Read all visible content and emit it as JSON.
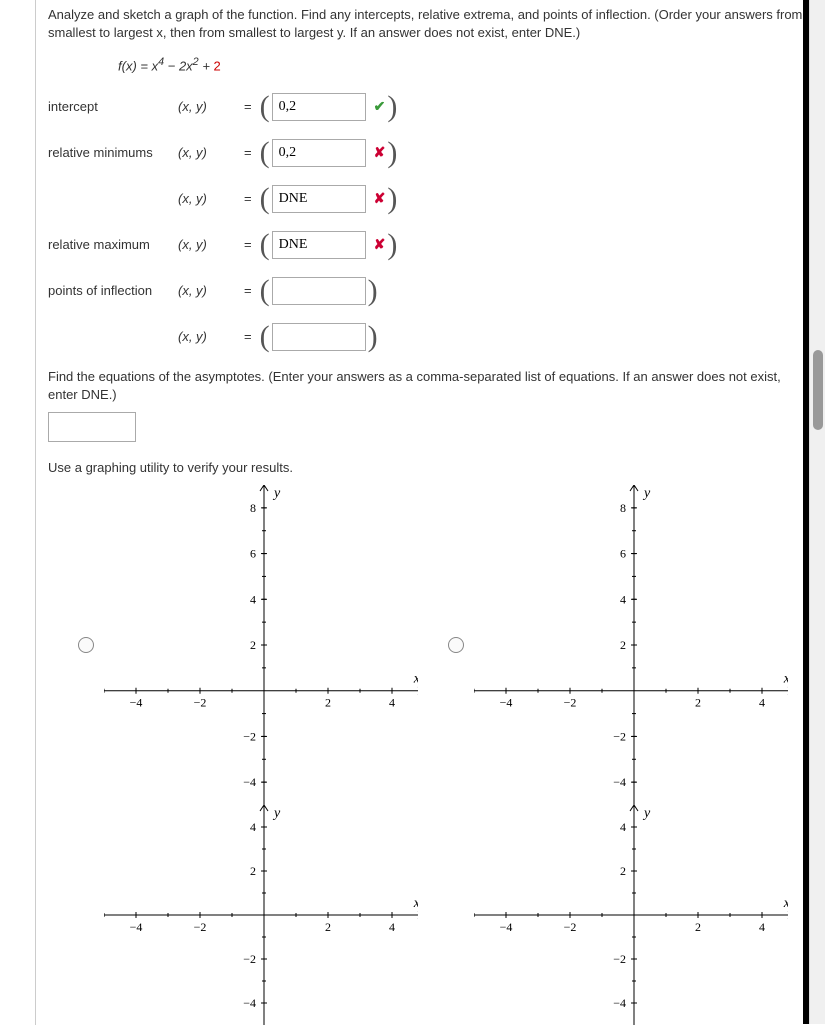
{
  "instructions": "Analyze and sketch a graph of the function. Find any intercepts, relative extrema, and points of inflection. (Order your answers from smallest to largest x, then from smallest to largest y. If an answer does not exist, enter DNE.)",
  "func": {
    "lhs": "f(x) = x",
    "sup1": "4",
    "mid": " − 2x",
    "sup2": "2",
    "tail": " + ",
    "constant": "2"
  },
  "labels": {
    "intercept": "intercept",
    "min": "relative minimums",
    "max": "relative maximum",
    "pts": "points of inflection",
    "xy": "(x, y)",
    "eq": "="
  },
  "answers": {
    "intercept": {
      "value": "0,2",
      "mark": "correct"
    },
    "min1": {
      "value": "0,2",
      "mark": "wrong"
    },
    "min2": {
      "value": "DNE",
      "mark": "wrong"
    },
    "max": {
      "value": "DNE",
      "mark": "wrong"
    },
    "pt1": {
      "value": "",
      "mark": "none"
    },
    "pt2": {
      "value": "",
      "mark": "none"
    }
  },
  "asymptote_prompt": "Find the equations of the asymptotes. (Enter your answers as a comma-separated list of equations. If an answer does not exist, enter DNE.)",
  "asymptote_value": "",
  "verify": "Use a graphing utility to verify your results.",
  "marks": {
    "correct": "✔",
    "wrong": "✘"
  },
  "chart_style": {
    "axis_color": "#000",
    "curve_color": "#000",
    "curve_width": 2,
    "bg": "#ffffff",
    "label_font": "italic 14px Times",
    "x_range": [
      -5,
      5
    ],
    "x_ticks": [
      -4,
      -2,
      2,
      4
    ],
    "tall": {
      "y_range": [
        -5,
        9
      ],
      "y_ticks_pos": [
        2,
        4,
        6,
        8
      ],
      "y_ticks_neg": [
        -2,
        -4
      ]
    },
    "short": {
      "y_range": [
        -5,
        5
      ],
      "y_ticks_pos": [
        2,
        4
      ],
      "y_ticks_neg": [
        -2,
        -4
      ]
    }
  },
  "graphs": [
    {
      "id": "gA",
      "variant": "tall",
      "flip": true,
      "shift": 2,
      "tight": true
    },
    {
      "id": "gB",
      "variant": "tall",
      "flip": false,
      "shift": 2,
      "tight": false
    },
    {
      "id": "gC",
      "variant": "short",
      "flip": true,
      "shift": -2,
      "tight": true
    },
    {
      "id": "gD",
      "variant": "short",
      "flip": false,
      "shift": -2,
      "tight": false
    }
  ]
}
